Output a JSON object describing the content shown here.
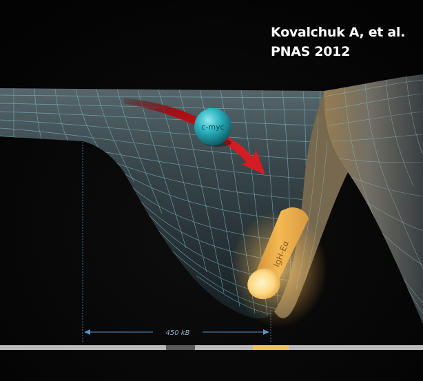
{
  "citation": {
    "line1": "Kovalchuk A, et al.",
    "line2": "PNAS 2012"
  },
  "labels": {
    "ball": "c-myc",
    "rod": "IgH-Eα",
    "distance": "450 kB"
  },
  "colors": {
    "background": "#060606",
    "mesh_line": "#7fb8c6",
    "surface_dark": "#1b2427",
    "surface_light": "#4e5e63",
    "ball": "#2cb3c0",
    "arrow": "#c0151b",
    "rod": "#f4b955",
    "dimension_line": "#5d93bd",
    "chromosome_bar": "#b9b9b9",
    "chromosome_dark_segment": "#5a5a5a",
    "chromosome_highlight_segment": "#f5c25a"
  },
  "icons": {
    "ball": "sphere-shape",
    "rod": "cylinder-shape",
    "arrow": "curved-arrow-shape"
  }
}
